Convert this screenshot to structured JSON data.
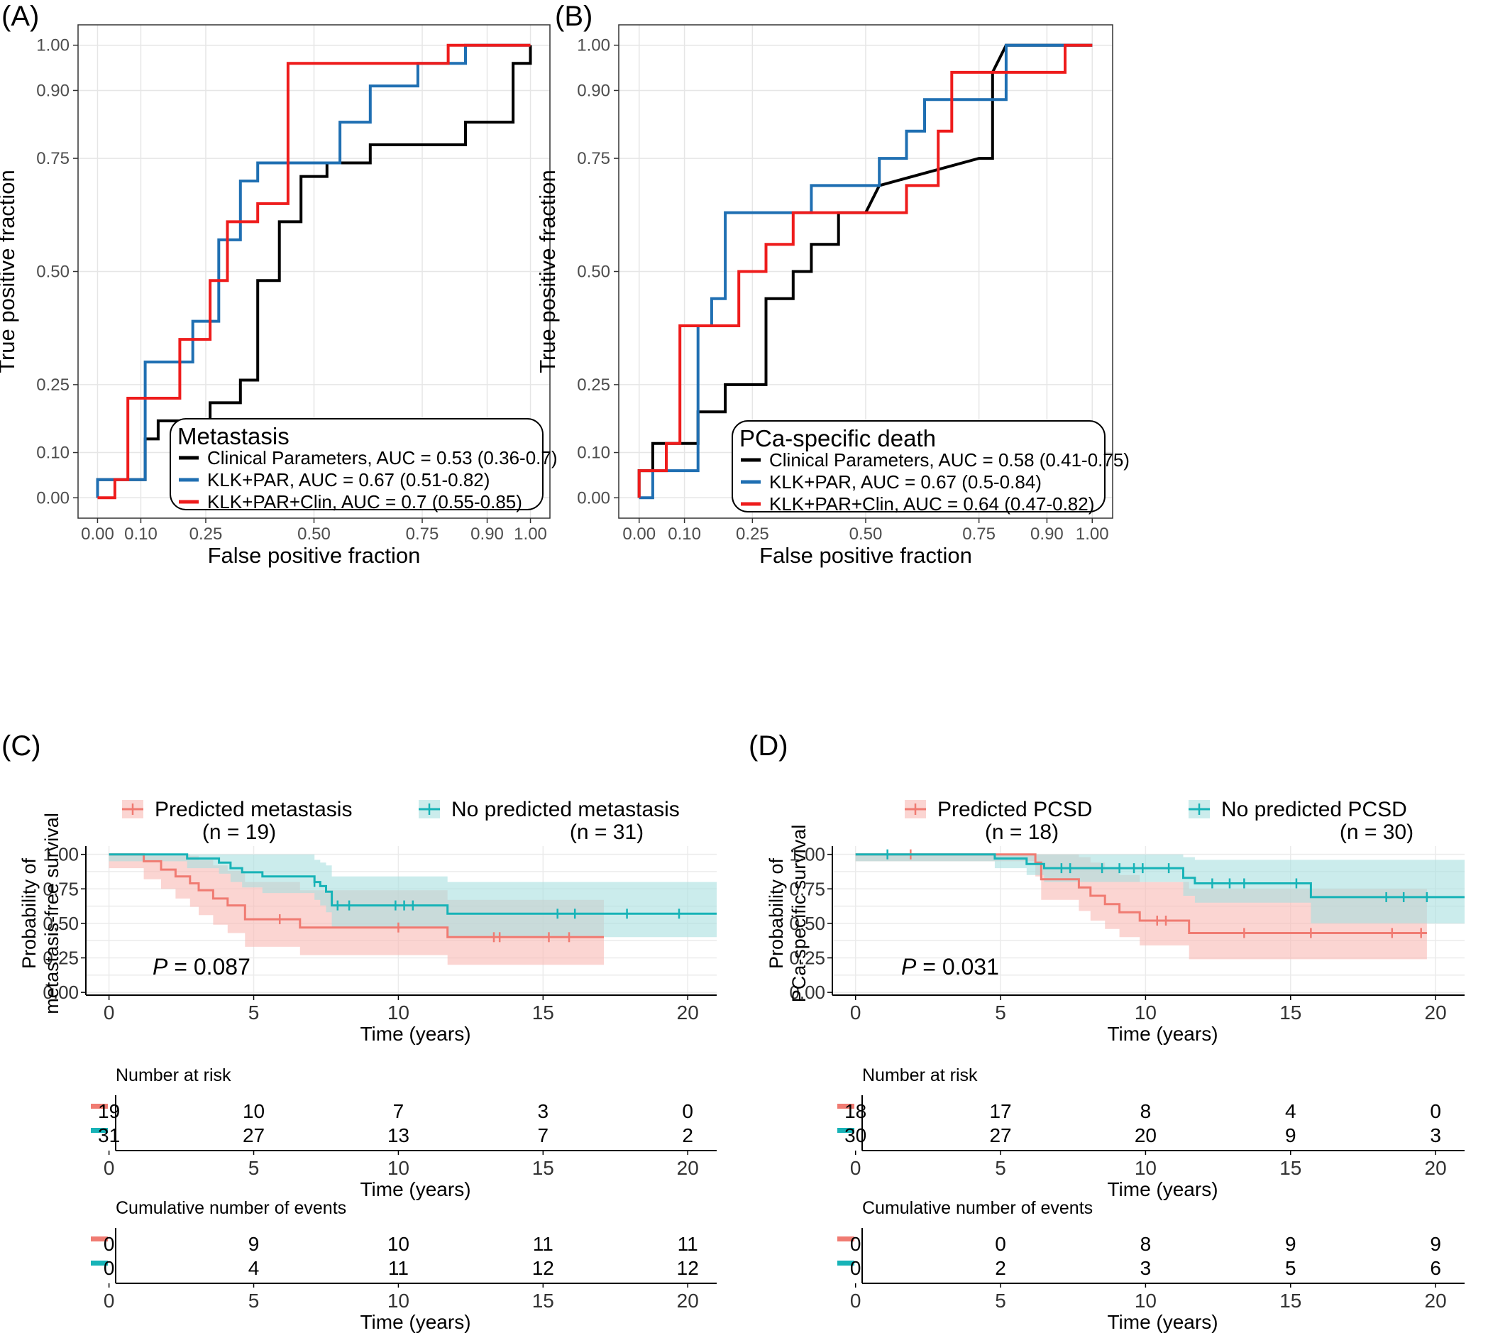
{
  "chart_data": [
    {
      "panel": "(A)",
      "type": "line",
      "subtype": "roc",
      "xlabel": "False positive fraction",
      "ylabel": "True positive fraction",
      "xticks": [
        "0.00",
        "0.10",
        "0.25",
        "0.50",
        "0.75",
        "0.90",
        "1.00"
      ],
      "yticks": [
        "0.00",
        "0.10",
        "0.25",
        "0.50",
        "0.75",
        "0.90",
        "1.00"
      ],
      "xlim": [
        0,
        1
      ],
      "ylim": [
        0,
        1
      ],
      "grid": true,
      "legend_position": "bottom-right",
      "legend_title": "Metastasis",
      "series": [
        {
          "name": "Clinical Parameters, AUC = 0.53 (0.36-0.7)",
          "color": "#000000",
          "x": [
            0.0,
            0.0,
            0.11,
            0.11,
            0.14,
            0.14,
            0.26,
            0.26,
            0.33,
            0.33,
            0.37,
            0.37,
            0.42,
            0.42,
            0.47,
            0.47,
            0.53,
            0.53,
            0.63,
            0.63,
            0.85,
            0.85,
            0.96,
            0.96,
            1.0,
            1.0
          ],
          "y": [
            0.0,
            0.04,
            0.04,
            0.13,
            0.13,
            0.17,
            0.17,
            0.21,
            0.21,
            0.26,
            0.26,
            0.48,
            0.48,
            0.61,
            0.61,
            0.71,
            0.71,
            0.74,
            0.74,
            0.78,
            0.78,
            0.83,
            0.83,
            0.96,
            0.96,
            1.0
          ]
        },
        {
          "name": "KLK+PAR, AUC = 0.67 (0.51-0.82)",
          "color": "#1f6fb2",
          "x": [
            0.0,
            0.0,
            0.11,
            0.11,
            0.22,
            0.22,
            0.28,
            0.28,
            0.33,
            0.33,
            0.37,
            0.37,
            0.41,
            0.41,
            0.56,
            0.56,
            0.63,
            0.63,
            0.74,
            0.74,
            0.85,
            0.85,
            1.0
          ],
          "y": [
            0.0,
            0.04,
            0.04,
            0.3,
            0.3,
            0.39,
            0.39,
            0.57,
            0.57,
            0.7,
            0.7,
            0.74,
            0.74,
            0.74,
            0.74,
            0.83,
            0.83,
            0.91,
            0.91,
            0.96,
            0.96,
            1.0,
            1.0
          ]
        },
        {
          "name": "KLK+PAR+Clin, AUC = 0.7 (0.55-0.85)",
          "color": "#ee1c1c",
          "x": [
            0.0,
            0.04,
            0.04,
            0.07,
            0.07,
            0.19,
            0.19,
            0.26,
            0.26,
            0.3,
            0.3,
            0.37,
            0.37,
            0.44,
            0.44,
            0.81,
            0.81,
            1.0
          ],
          "y": [
            0.0,
            0.0,
            0.04,
            0.04,
            0.22,
            0.22,
            0.35,
            0.35,
            0.48,
            0.48,
            0.61,
            0.61,
            0.65,
            0.65,
            0.96,
            0.96,
            1.0,
            1.0
          ]
        }
      ]
    },
    {
      "panel": "(B)",
      "type": "line",
      "subtype": "roc",
      "xlabel": "False positive fraction",
      "ylabel": "True positive fraction",
      "xticks": [
        "0.00",
        "0.10",
        "0.25",
        "0.50",
        "0.75",
        "0.90",
        "1.00"
      ],
      "yticks": [
        "0.00",
        "0.10",
        "0.25",
        "0.50",
        "0.75",
        "0.90",
        "1.00"
      ],
      "xlim": [
        0,
        1
      ],
      "ylim": [
        0,
        1
      ],
      "grid": true,
      "legend_position": "bottom-right",
      "legend_title": "PCa-specific death",
      "series": [
        {
          "name": "Clinical Parameters, AUC = 0.58 (0.41-0.75)",
          "color": "#000000",
          "x": [
            0.0,
            0.0,
            0.03,
            0.03,
            0.13,
            0.13,
            0.19,
            0.19,
            0.28,
            0.28,
            0.34,
            0.34,
            0.38,
            0.38,
            0.44,
            0.44,
            0.5,
            0.53,
            0.75,
            0.78,
            0.78,
            0.81,
            1.0
          ],
          "y": [
            0.0,
            0.06,
            0.06,
            0.12,
            0.12,
            0.19,
            0.19,
            0.25,
            0.25,
            0.44,
            0.44,
            0.5,
            0.5,
            0.56,
            0.56,
            0.63,
            0.63,
            0.69,
            0.75,
            0.75,
            0.94,
            1.0,
            1.0
          ]
        },
        {
          "name": "KLK+PAR, AUC = 0.67 (0.5-0.84)",
          "color": "#1f6fb2",
          "x": [
            0.0,
            0.03,
            0.03,
            0.13,
            0.13,
            0.16,
            0.16,
            0.19,
            0.19,
            0.38,
            0.38,
            0.53,
            0.53,
            0.59,
            0.59,
            0.63,
            0.63,
            0.81,
            0.81,
            1.0
          ],
          "y": [
            0.0,
            0.0,
            0.06,
            0.06,
            0.38,
            0.38,
            0.44,
            0.44,
            0.63,
            0.63,
            0.69,
            0.69,
            0.75,
            0.75,
            0.81,
            0.81,
            0.88,
            0.88,
            1.0,
            1.0
          ]
        },
        {
          "name": "KLK+PAR+Clin, AUC = 0.64 (0.47-0.82)",
          "color": "#ee1c1c",
          "x": [
            0.0,
            0.0,
            0.06,
            0.06,
            0.09,
            0.09,
            0.22,
            0.22,
            0.28,
            0.28,
            0.34,
            0.34,
            0.59,
            0.59,
            0.66,
            0.66,
            0.69,
            0.69,
            0.94,
            0.94,
            1.0
          ],
          "y": [
            0.0,
            0.06,
            0.06,
            0.12,
            0.12,
            0.38,
            0.38,
            0.5,
            0.5,
            0.56,
            0.56,
            0.63,
            0.63,
            0.69,
            0.69,
            0.81,
            0.81,
            0.94,
            0.94,
            1.0,
            1.0
          ]
        }
      ]
    },
    {
      "panel": "(C)",
      "type": "line",
      "subtype": "kaplan-meier",
      "ylabel": [
        "Probability of",
        "metastasis-free survival"
      ],
      "xlabel": "Time (years)",
      "xticks": [
        0,
        5,
        10,
        15,
        20
      ],
      "yticks": [
        "0.00",
        "0.25",
        "0.50",
        "0.75",
        "1.00"
      ],
      "xlim": [
        0,
        21
      ],
      "ylim": [
        0,
        1
      ],
      "grid": true,
      "legend_position": "top",
      "pvalue": "= 0.087",
      "pvalue_prefix": "P",
      "series": [
        {
          "name": "Predicted metastasis",
          "n_label": "(n = 19)",
          "color": "#f07b72",
          "fill": "#f8b9b4",
          "x": [
            0,
            1.2,
            1.8,
            2.3,
            2.8,
            3.1,
            3.6,
            4.1,
            4.7,
            6.6,
            11.7,
            17.1
          ],
          "y": [
            1.0,
            0.95,
            0.89,
            0.84,
            0.79,
            0.74,
            0.68,
            0.63,
            0.53,
            0.47,
            0.4,
            0.4
          ],
          "lower": [
            0.9,
            0.82,
            0.75,
            0.68,
            0.62,
            0.56,
            0.49,
            0.43,
            0.33,
            0.27,
            0.2,
            0.2
          ],
          "upper": [
            1.0,
            1.0,
            1.0,
            1.0,
            0.99,
            0.96,
            0.92,
            0.88,
            0.8,
            0.74,
            0.67,
            0.67
          ],
          "censor_x": [
            5.9,
            10.0,
            13.3,
            13.5,
            15.2,
            15.9
          ],
          "censor_y": [
            0.53,
            0.47,
            0.4,
            0.4,
            0.4,
            0.4
          ]
        },
        {
          "name": "No predicted metastasis",
          "n_label": "(n = 31)",
          "color": "#17b3b7",
          "fill": "#a9dfe0",
          "x": [
            0,
            2.7,
            3.8,
            4.2,
            4.6,
            5.3,
            7.1,
            7.3,
            7.5,
            7.7,
            11.7,
            21
          ],
          "y": [
            1.0,
            0.97,
            0.94,
            0.9,
            0.87,
            0.84,
            0.8,
            0.77,
            0.73,
            0.63,
            0.57,
            0.57
          ],
          "lower": [
            0.95,
            0.9,
            0.86,
            0.8,
            0.76,
            0.72,
            0.67,
            0.63,
            0.58,
            0.47,
            0.4,
            0.4
          ],
          "upper": [
            1.0,
            1.0,
            1.0,
            1.0,
            1.0,
            1.0,
            0.96,
            0.94,
            0.92,
            0.84,
            0.8,
            0.8
          ],
          "censor_x": [
            7.1,
            7.9,
            8.3,
            9.9,
            10.2,
            10.5,
            15.5,
            16.1,
            17.9,
            19.7
          ],
          "censor_y": [
            0.8,
            0.63,
            0.63,
            0.63,
            0.63,
            0.63,
            0.57,
            0.57,
            0.57,
            0.57
          ]
        }
      ],
      "risk_table": {
        "title": "Number at risk",
        "xlabel": "Time (years)",
        "rows": [
          {
            "color": "#f07b72",
            "values": [
              "19",
              "10",
              "7",
              "3",
              "0"
            ]
          },
          {
            "color": "#17b3b7",
            "values": [
              "31",
              "27",
              "13",
              "7",
              "2"
            ]
          }
        ]
      },
      "events_table": {
        "title": "Cumulative number of events",
        "xlabel": "Time (years)",
        "rows": [
          {
            "color": "#f07b72",
            "values": [
              "0",
              "9",
              "10",
              "11",
              "11"
            ]
          },
          {
            "color": "#17b3b7",
            "values": [
              "0",
              "4",
              "11",
              "12",
              "12"
            ]
          }
        ]
      }
    },
    {
      "panel": "(D)",
      "type": "line",
      "subtype": "kaplan-meier",
      "ylabel": [
        "Probability of",
        "PCa-specific survival"
      ],
      "xlabel": "Time (years)",
      "xticks": [
        0,
        5,
        10,
        15,
        20
      ],
      "yticks": [
        "0.00",
        "0.25",
        "0.50",
        "0.75",
        "1.00"
      ],
      "xlim": [
        0,
        21
      ],
      "ylim": [
        0,
        1
      ],
      "grid": true,
      "legend_position": "top",
      "pvalue": "= 0.031",
      "pvalue_prefix": "P",
      "series": [
        {
          "name": "Predicted PCSD",
          "n_label": "(n = 18)",
          "color": "#f07b72",
          "fill": "#f8b9b4",
          "x": [
            0,
            6.2,
            6.4,
            7.7,
            8.1,
            8.6,
            9.1,
            9.8,
            11.5,
            19.7
          ],
          "y": [
            1.0,
            0.94,
            0.82,
            0.76,
            0.7,
            0.64,
            0.58,
            0.52,
            0.43,
            0.43
          ],
          "lower": [
            0.95,
            0.84,
            0.67,
            0.59,
            0.52,
            0.46,
            0.4,
            0.34,
            0.24,
            0.24
          ],
          "upper": [
            1.0,
            1.0,
            1.0,
            0.98,
            0.94,
            0.89,
            0.85,
            0.8,
            0.75,
            0.75
          ],
          "censor_x": [
            1.9,
            10.4,
            10.7,
            13.4,
            15.7,
            18.5,
            19.5
          ],
          "censor_y": [
            1.0,
            0.52,
            0.52,
            0.43,
            0.43,
            0.43,
            0.43
          ]
        },
        {
          "name": "No predicted PCSD",
          "n_label": "(n = 30)",
          "color": "#17b3b7",
          "fill": "#a9dfe0",
          "x": [
            0,
            4.8,
            5.9,
            6.5,
            11.3,
            11.7,
            15.7,
            21
          ],
          "y": [
            1.0,
            0.97,
            0.93,
            0.9,
            0.83,
            0.79,
            0.69,
            0.69
          ],
          "lower": [
            0.95,
            0.9,
            0.85,
            0.8,
            0.7,
            0.65,
            0.5,
            0.5
          ],
          "upper": [
            1.0,
            1.0,
            1.0,
            1.0,
            0.98,
            0.96,
            0.96,
            0.96
          ],
          "censor_x": [
            1.1,
            7.1,
            7.4,
            8.5,
            9.1,
            9.6,
            9.9,
            10.8,
            12.3,
            12.9,
            13.4,
            15.2,
            18.3,
            18.9,
            19.7
          ],
          "censor_y": [
            1.0,
            0.9,
            0.9,
            0.9,
            0.9,
            0.9,
            0.9,
            0.9,
            0.79,
            0.79,
            0.79,
            0.79,
            0.69,
            0.69,
            0.69
          ]
        }
      ],
      "risk_table": {
        "title": "Number at risk",
        "xlabel": "Time (years)",
        "rows": [
          {
            "color": "#f07b72",
            "values": [
              "18",
              "17",
              "8",
              "4",
              "0"
            ]
          },
          {
            "color": "#17b3b7",
            "values": [
              "30",
              "27",
              "20",
              "9",
              "3"
            ]
          }
        ]
      },
      "events_table": {
        "title": "Cumulative number of events",
        "xlabel": "Time (years)",
        "rows": [
          {
            "color": "#f07b72",
            "values": [
              "0",
              "0",
              "8",
              "9",
              "9"
            ]
          },
          {
            "color": "#17b3b7",
            "values": [
              "0",
              "2",
              "3",
              "5",
              "6"
            ]
          }
        ]
      }
    }
  ]
}
